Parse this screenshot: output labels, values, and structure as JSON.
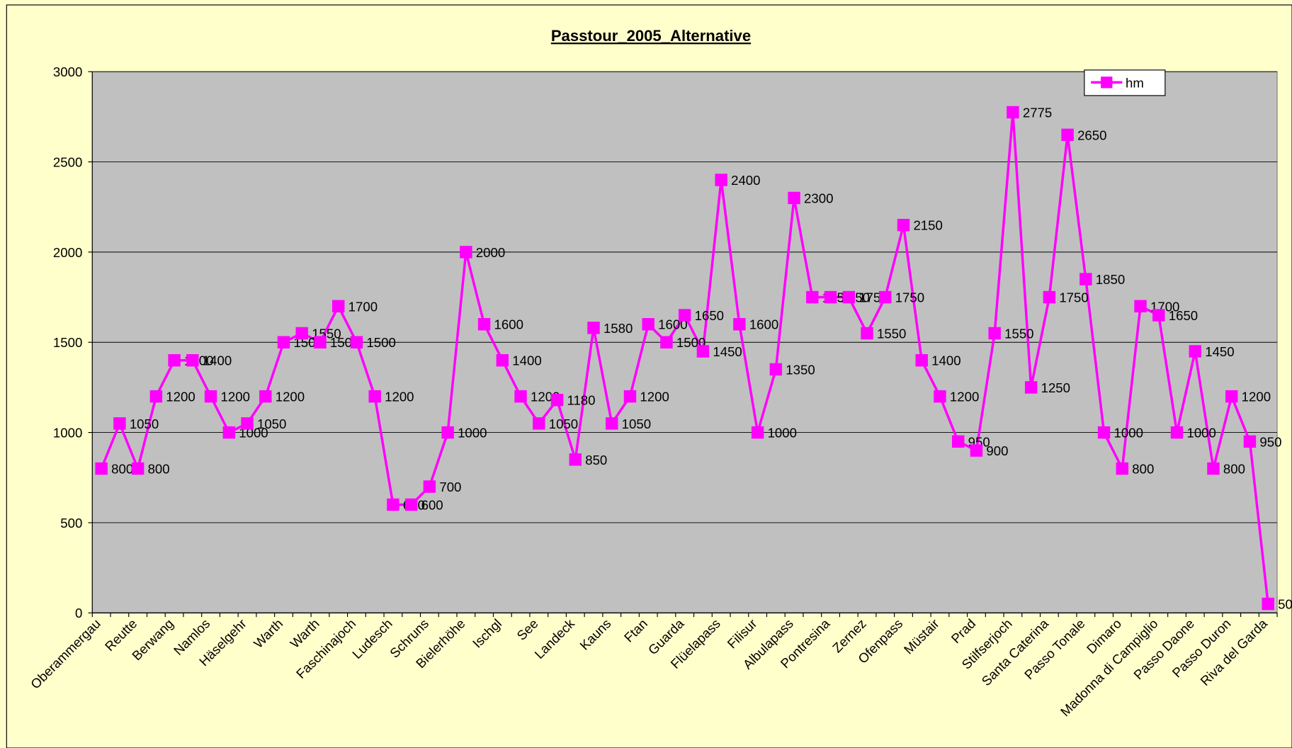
{
  "chart_data": {
    "type": "line",
    "title": "Passtour_2005_Alternative",
    "categories": [
      "Oberammergau",
      null,
      "Reutte",
      null,
      "Berwang",
      null,
      "Namlos",
      null,
      "Häselgehr",
      null,
      "Warth",
      null,
      "Warth",
      null,
      "Faschinajoch",
      null,
      "Ludesch",
      null,
      "Schruns",
      null,
      "Bielerhöhe",
      null,
      "Ischgl",
      null,
      "See",
      null,
      "Landeck",
      null,
      "Kauns",
      null,
      "Ftan",
      null,
      "Guarda",
      null,
      "Flüelapass",
      null,
      "Filisur",
      null,
      "Albulapass",
      null,
      "Pontresina",
      null,
      "Zernez",
      null,
      "Ofenpass",
      null,
      "Müstair",
      null,
      "Prad",
      null,
      "Stilfserjoch",
      null,
      "Santa Caterina",
      null,
      "Passo Tonale",
      null,
      "Dimaro",
      null,
      "Madonna di Campiglio",
      null,
      "Passo Daone",
      null,
      "Passo Duron",
      null,
      "Riva del Garda"
    ],
    "series": [
      {
        "name": "hm",
        "color": "#FF00FF",
        "values": [
          800,
          1050,
          800,
          1200,
          1400,
          1400,
          1200,
          1000,
          1050,
          1200,
          1500,
          1550,
          1500,
          1700,
          1500,
          1200,
          600,
          600,
          700,
          1000,
          2000,
          1600,
          1400,
          1200,
          1050,
          1180,
          850,
          1580,
          1050,
          1200,
          1600,
          1500,
          1650,
          1450,
          2400,
          1600,
          1000,
          1350,
          2300,
          1750,
          1750,
          1750,
          1550,
          1750,
          2150,
          1400,
          1200,
          950,
          900,
          1550,
          2775,
          1250,
          1750,
          2650,
          1850,
          1000,
          800,
          1700,
          1650,
          1000,
          1450,
          800,
          1200,
          950,
          50
        ]
      }
    ],
    "ylim": [
      0,
      3000
    ],
    "yticks": [
      0,
      500,
      1000,
      1500,
      2000,
      2500,
      3000
    ],
    "grid": true,
    "legend": "upper right",
    "plot_color": "#C0C0C0",
    "background": "#FFFFCC"
  }
}
